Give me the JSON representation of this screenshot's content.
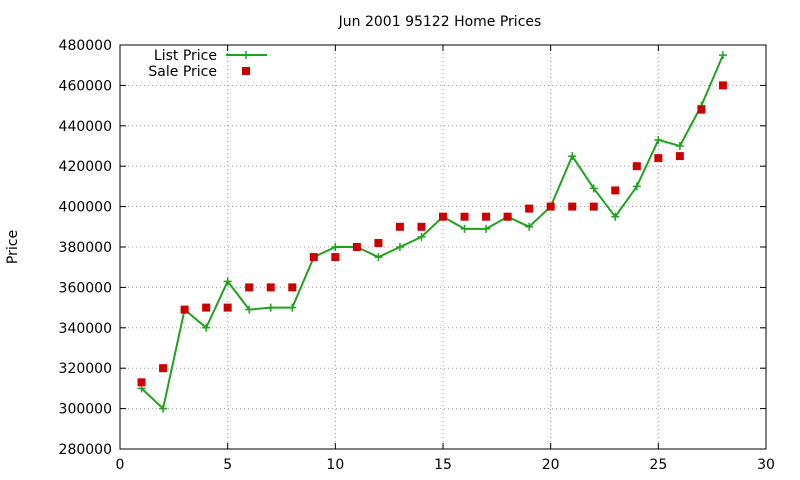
{
  "chart_data": {
    "type": "line",
    "title": "Jun 2001 95122 Home Prices",
    "xlabel": "",
    "ylabel": "Price",
    "xlim": [
      0,
      30
    ],
    "ylim": [
      280000,
      480000
    ],
    "x_ticks": [
      0,
      5,
      10,
      15,
      20,
      25,
      30
    ],
    "y_ticks": [
      280000,
      300000,
      320000,
      340000,
      360000,
      380000,
      400000,
      420000,
      440000,
      460000,
      480000
    ],
    "grid": true,
    "legend_position": "top-left",
    "series": [
      {
        "name": "List Price",
        "style": "line-with-plus-markers",
        "color": "#1fa31f",
        "x": [
          1,
          2,
          3,
          4,
          5,
          6,
          7,
          8,
          9,
          10,
          11,
          12,
          13,
          14,
          15,
          16,
          17,
          18,
          19,
          20,
          21,
          22,
          23,
          24,
          25,
          26,
          27,
          28
        ],
        "values": [
          310000,
          300000,
          349000,
          340000,
          363000,
          349000,
          350000,
          350000,
          375000,
          380000,
          380000,
          375000,
          380000,
          385000,
          395000,
          389000,
          389000,
          395000,
          390000,
          400000,
          425000,
          409000,
          395000,
          410000,
          433000,
          430000,
          450000,
          475000
        ]
      },
      {
        "name": "Sale Price",
        "style": "square-markers",
        "color": "#cc0000",
        "x": [
          1,
          2,
          3,
          4,
          5,
          6,
          7,
          8,
          9,
          10,
          11,
          12,
          13,
          14,
          15,
          16,
          17,
          18,
          19,
          20,
          21,
          22,
          23,
          24,
          25,
          26,
          27,
          28
        ],
        "values": [
          313000,
          320000,
          349000,
          350000,
          350000,
          360000,
          360000,
          360000,
          375000,
          375000,
          380000,
          382000,
          390000,
          390000,
          395000,
          395000,
          395000,
          395000,
          399000,
          400000,
          400000,
          400000,
          408000,
          420000,
          424000,
          425000,
          448000,
          460000
        ]
      }
    ]
  }
}
